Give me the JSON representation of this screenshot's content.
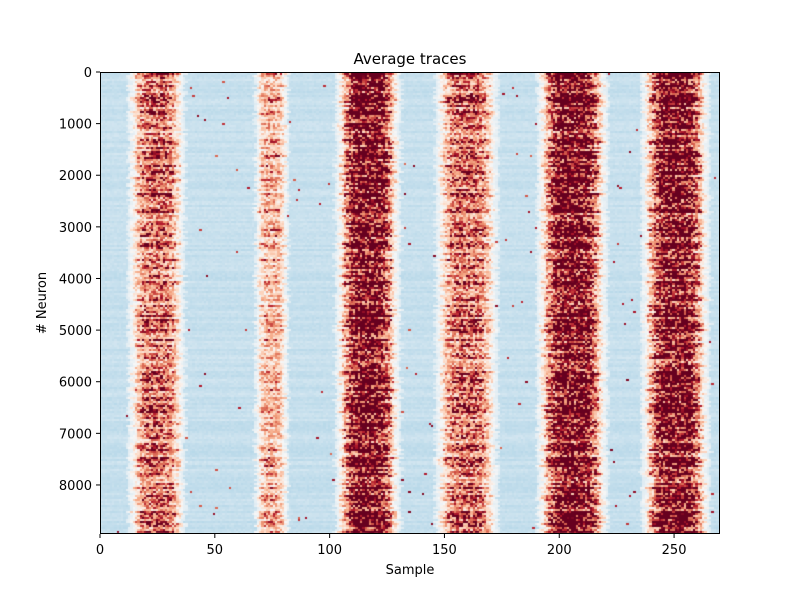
{
  "chart_data": {
    "type": "heatmap",
    "title": "Average traces",
    "xlabel": "Sample",
    "ylabel": "# Neuron",
    "xlim": [
      0,
      270
    ],
    "ylim": [
      8950,
      0
    ],
    "xticks": [
      0,
      50,
      100,
      150,
      200,
      250
    ],
    "yticks": [
      0,
      1000,
      2000,
      3000,
      4000,
      5000,
      6000,
      7000,
      8000
    ],
    "colormap": "RdBu_r",
    "n_samples": 270,
    "n_neurons": 8950,
    "activity_bands": [
      {
        "x_start": 16,
        "x_end": 32,
        "peak_sample": 24,
        "intensity": "moderate"
      },
      {
        "x_start": 70,
        "x_end": 78,
        "peak_sample": 74,
        "intensity": "weak"
      },
      {
        "x_start": 107,
        "x_end": 125,
        "peak_sample": 116,
        "intensity": "strong"
      },
      {
        "x_start": 150,
        "x_end": 168,
        "peak_sample": 159,
        "intensity": "moderate"
      },
      {
        "x_start": 195,
        "x_end": 215,
        "peak_sample": 205,
        "intensity": "strong"
      },
      {
        "x_start": 241,
        "x_end": 260,
        "peak_sample": 250,
        "intensity": "strong"
      }
    ],
    "background_color": "#d1e5f0",
    "low_color": "#92c5de",
    "mid_color": "#f7f7f7",
    "high_colors": [
      "#fddbc7",
      "#f4a582",
      "#d6604d",
      "#b2182b",
      "#67001f"
    ]
  }
}
